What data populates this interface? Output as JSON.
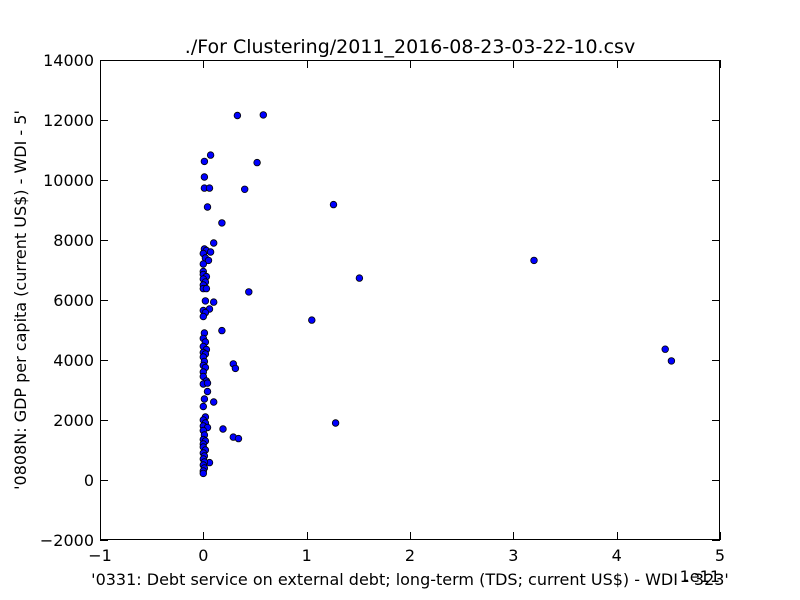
{
  "chart_data": {
    "type": "scatter",
    "title": "./For Clustering/2011_2016-08-23-03-22-10.csv",
    "xlabel": "'0331: Debt service on external debt; long-term  (TDS; current US$) - WDI - 323'",
    "ylabel": "'0808N: GDP per capita  (current US$) - WDI - 5'",
    "x_scale_label": "1e11",
    "xlim": [
      -1,
      5
    ],
    "ylim": [
      -2000,
      14000
    ],
    "x_ticks": [
      -1,
      0,
      1,
      2,
      3,
      4,
      5
    ],
    "x_tick_labels": [
      "−1",
      "0",
      "1",
      "2",
      "3",
      "4",
      "5"
    ],
    "y_ticks": [
      -2000,
      0,
      2000,
      4000,
      6000,
      8000,
      10000,
      12000,
      14000
    ],
    "y_tick_labels": [
      "−2000",
      "0",
      "2000",
      "4000",
      "6000",
      "8000",
      "10000",
      "12000",
      "14000"
    ],
    "grid": false,
    "marker_color": "#0000ff",
    "series": [
      {
        "points": [
          [
            0.33,
            12150
          ],
          [
            0.58,
            12170
          ],
          [
            0.07,
            10830
          ],
          [
            0.01,
            10620
          ],
          [
            0.52,
            10580
          ],
          [
            0.01,
            10100
          ],
          [
            0.01,
            9730
          ],
          [
            0.06,
            9730
          ],
          [
            0.4,
            9690
          ],
          [
            0.04,
            9100
          ],
          [
            1.26,
            9180
          ],
          [
            0.18,
            8570
          ],
          [
            0.1,
            7900
          ],
          [
            0.01,
            7700
          ],
          [
            0.03,
            7650
          ],
          [
            0.07,
            7600
          ],
          [
            0.0,
            7550
          ],
          [
            0.02,
            7400
          ],
          [
            0.05,
            7320
          ],
          [
            0.0,
            7200
          ],
          [
            3.2,
            7320
          ],
          [
            0.0,
            6950
          ],
          [
            0.0,
            6850
          ],
          [
            0.03,
            6780
          ],
          [
            0.0,
            6700
          ],
          [
            1.51,
            6730
          ],
          [
            0.02,
            6600
          ],
          [
            0.0,
            6500
          ],
          [
            0.0,
            6380
          ],
          [
            0.03,
            6380
          ],
          [
            0.44,
            6270
          ],
          [
            0.02,
            5970
          ],
          [
            0.1,
            5930
          ],
          [
            0.06,
            5700
          ],
          [
            0.0,
            5650
          ],
          [
            0.02,
            5580
          ],
          [
            0.0,
            5450
          ],
          [
            1.05,
            5330
          ],
          [
            0.18,
            4980
          ],
          [
            0.01,
            4900
          ],
          [
            0.0,
            4720
          ],
          [
            0.02,
            4600
          ],
          [
            0.0,
            4450
          ],
          [
            0.03,
            4350
          ],
          [
            4.47,
            4360
          ],
          [
            0.0,
            4250
          ],
          [
            0.02,
            4200
          ],
          [
            0.0,
            4100
          ],
          [
            4.53,
            3970
          ],
          [
            0.01,
            3950
          ],
          [
            0.0,
            3820
          ],
          [
            0.02,
            3750
          ],
          [
            0.29,
            3870
          ],
          [
            0.31,
            3720
          ],
          [
            0.0,
            3600
          ],
          [
            0.0,
            3450
          ],
          [
            0.03,
            3300
          ],
          [
            0.0,
            3200
          ],
          [
            0.04,
            3230
          ],
          [
            0.04,
            2950
          ],
          [
            0.01,
            2700
          ],
          [
            0.1,
            2600
          ],
          [
            0.0,
            2450
          ],
          [
            0.02,
            2100
          ],
          [
            0.0,
            2000
          ],
          [
            0.02,
            1900
          ],
          [
            1.28,
            1900
          ],
          [
            0.0,
            1800
          ],
          [
            0.04,
            1750
          ],
          [
            0.19,
            1700
          ],
          [
            0.0,
            1650
          ],
          [
            0.01,
            1500
          ],
          [
            0.29,
            1430
          ],
          [
            0.34,
            1380
          ],
          [
            0.0,
            1350
          ],
          [
            0.02,
            1300
          ],
          [
            0.0,
            1200
          ],
          [
            0.0,
            1100
          ],
          [
            0.02,
            1000
          ],
          [
            0.0,
            900
          ],
          [
            0.01,
            800
          ],
          [
            0.0,
            700
          ],
          [
            0.06,
            580
          ],
          [
            0.01,
            600
          ],
          [
            0.0,
            500
          ],
          [
            0.01,
            400
          ],
          [
            0.0,
            300
          ],
          [
            0.0,
            220
          ]
        ]
      }
    ]
  }
}
